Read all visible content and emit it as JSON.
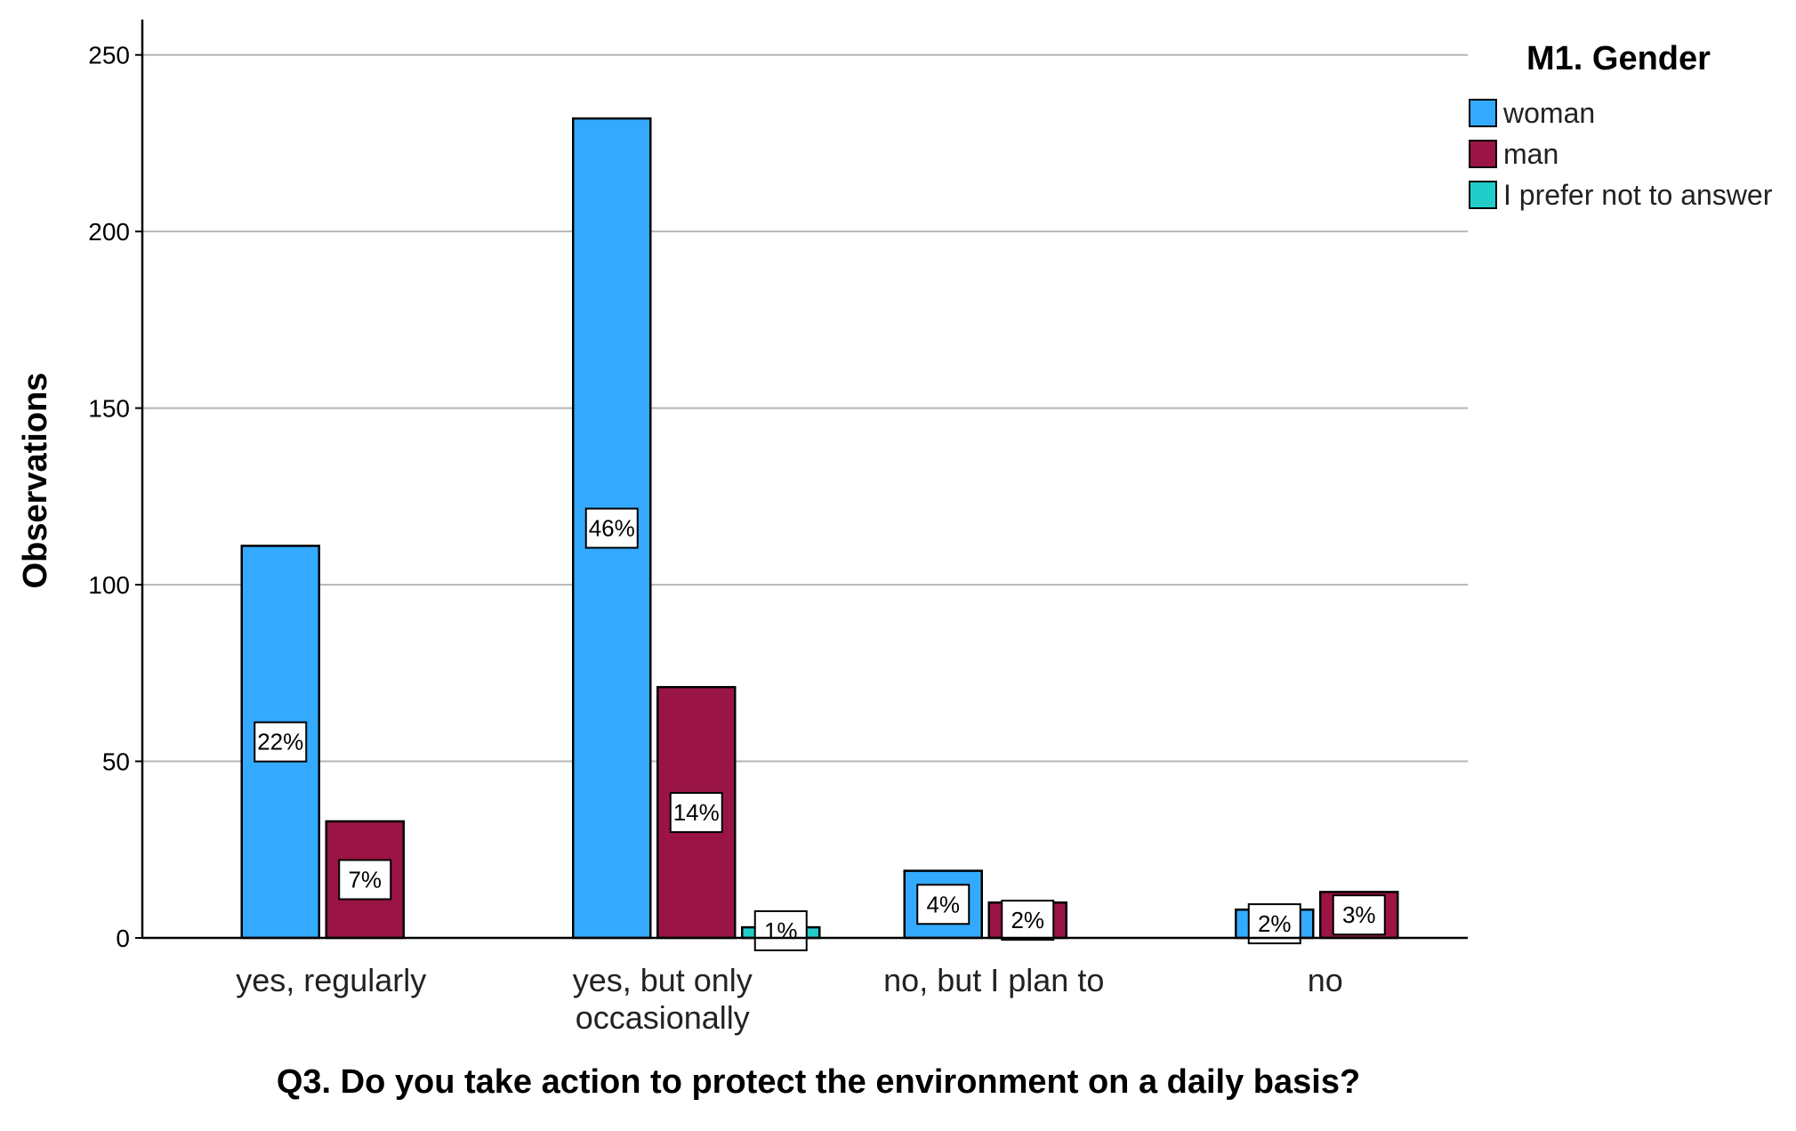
{
  "chart_data": {
    "type": "bar",
    "title": "",
    "xlabel": "Q3. Do you take action to protect the environment on a daily basis?",
    "ylabel": "Observations",
    "categories": [
      [
        "yes, regularly"
      ],
      [
        "yes, but only",
        "occasionally"
      ],
      [
        "no, but I plan to"
      ],
      [
        "no"
      ]
    ],
    "series": [
      {
        "name": "woman",
        "color": "#33aaff",
        "values": [
          111,
          232,
          19,
          8
        ],
        "labels": [
          "22%",
          "46%",
          "4%",
          "2%"
        ]
      },
      {
        "name": "man",
        "color": "#9b1446",
        "values": [
          33,
          71,
          10,
          13
        ],
        "labels": [
          "7%",
          "14%",
          "2%",
          "3%"
        ]
      },
      {
        "name": "I prefer not to answer",
        "color": "#22ccc8",
        "values": [
          0,
          3,
          0,
          0
        ],
        "labels": [
          "",
          "1%",
          "",
          ""
        ]
      }
    ],
    "ylim": [
      0,
      260
    ],
    "yticks": [
      0,
      50,
      100,
      150,
      200,
      250
    ],
    "grid": true,
    "legend": {
      "title": "M1. Gender",
      "position": "top-right"
    }
  }
}
